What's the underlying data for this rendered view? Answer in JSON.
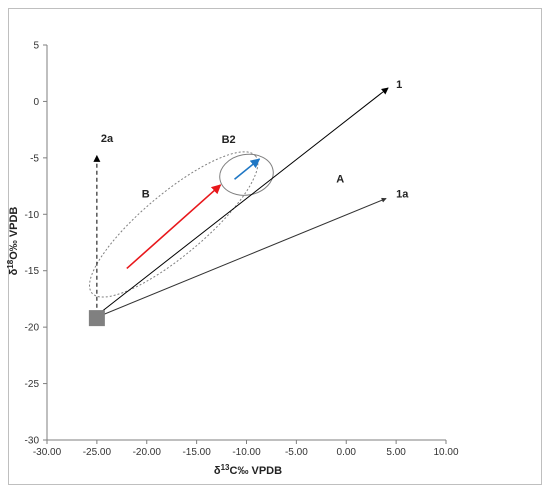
{
  "chart_data": {
    "type": "line",
    "title": "",
    "xlabel": "δ13C‰ VPDB",
    "ylabel": "δ18O‰ VPDB",
    "xlim": [
      -30,
      10
    ],
    "ylim": [
      -30,
      5
    ],
    "xticks": [
      -30,
      -25,
      -20,
      -15,
      -10,
      -5,
      0,
      5,
      10
    ],
    "xtick_labels": [
      "-30.00",
      "-25.00",
      "-20.00",
      "-15.00",
      "-10.00",
      "-5.00",
      "0.00",
      "5.00",
      "10.00"
    ],
    "yticks": [
      5,
      0,
      -5,
      -10,
      -15,
      -20,
      -25,
      -30
    ],
    "ytick_labels": [
      "5",
      "0",
      "-5",
      "-10",
      "-15",
      "-20",
      "-25",
      "-30"
    ],
    "grid": false,
    "colors": {
      "black": "#000000",
      "gray_line": "#333333",
      "red": "#e8171b",
      "blue": "#1f77c4",
      "ellipse": "#7f7f7f",
      "square": "#808080"
    },
    "square": {
      "x": -25,
      "y": -19.2,
      "color": "#808080"
    },
    "arrows": [
      {
        "id": "1",
        "from": [
          -25.5,
          -19.3
        ],
        "to": [
          4.2,
          1.2
        ],
        "style": "solid",
        "color": "#000000"
      },
      {
        "id": "1a",
        "from": [
          -25.5,
          -19.3
        ],
        "to": [
          4.0,
          -8.6
        ],
        "style": "solid",
        "color": "#333333"
      },
      {
        "id": "2a",
        "from": [
          -25,
          -18.9
        ],
        "to": [
          -25,
          -4.8
        ],
        "style": "dashed",
        "color": "#000000"
      },
      {
        "id": "red",
        "from": [
          -22,
          -14.8
        ],
        "to": [
          -12.6,
          -7.4
        ],
        "style": "solid",
        "color": "#e8171b"
      },
      {
        "id": "blue",
        "from": [
          -11.2,
          -6.9
        ],
        "to": [
          -8.7,
          -5.1
        ],
        "style": "solid",
        "color": "#1f77c4"
      }
    ],
    "ellipses": [
      {
        "id": "B",
        "center": [
          -17.3,
          -10.9
        ],
        "rx_data": 10.7,
        "ry_data": 2.75,
        "angle_deg": -40,
        "style": "dotted",
        "color": "#7f7f7f"
      },
      {
        "id": "B2",
        "center": [
          -10,
          -6.5
        ],
        "rx_data": 2.7,
        "ry_data": 1.8,
        "angle_deg": -10,
        "style": "solid",
        "color": "#7f7f7f"
      }
    ],
    "annotations": [
      {
        "text": "1",
        "x": 5.0,
        "y": 1.2
      },
      {
        "text": "1a",
        "x": 5.0,
        "y": -8.5
      },
      {
        "text": "2a",
        "x": -24.6,
        "y": -3.6
      },
      {
        "text": "B",
        "x": -20.5,
        "y": -8.5
      },
      {
        "text": "B2",
        "x": -12.5,
        "y": -3.7
      },
      {
        "text": "A",
        "x": -1.0,
        "y": -7.2
      }
    ]
  }
}
